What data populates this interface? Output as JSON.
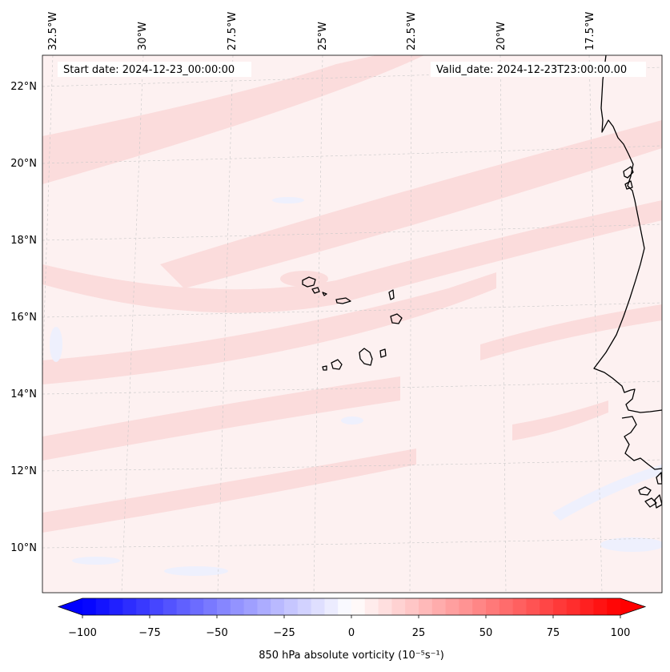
{
  "map": {
    "start_date": "Start date: 2024-12-23_00:00:00",
    "valid_date": "Valid_date: 2024-12-23T23:00:00.00",
    "lon_labels": [
      "32.5°W",
      "30°W",
      "27.5°W",
      "25°W",
      "22.5°W",
      "20°W",
      "17.5°W"
    ],
    "lat_labels": [
      "22°N",
      "20°N",
      "18°N",
      "16°N",
      "14°N",
      "12°N",
      "10°N"
    ],
    "field_color": "#fdf1f1",
    "band_color": "#fbdcdc",
    "neg_color": "#eef0fd",
    "coast_color": "#000000"
  },
  "colorbar": {
    "label": "850 hPa absolute vorticity (10⁻⁵s⁻¹)",
    "ticks": [
      "−100",
      "−75",
      "−50",
      "−25",
      "0",
      "25",
      "50",
      "75",
      "100"
    ],
    "min": -100,
    "max": 100,
    "low_color": "#0000ff",
    "mid_color": "#ffffff",
    "high_color": "#ff0000"
  }
}
